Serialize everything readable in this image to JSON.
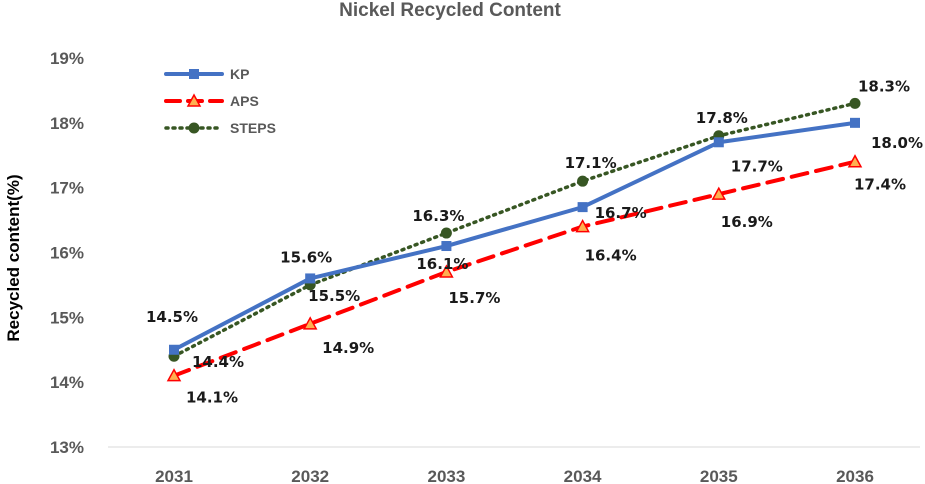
{
  "chart_data": {
    "type": "line",
    "title": "Nickel Recycled Content",
    "xlabel": "",
    "ylabel": "Recycled content(%)",
    "categories": [
      "2031",
      "2032",
      "2033",
      "2034",
      "2035",
      "2036"
    ],
    "ylim": [
      13,
      19
    ],
    "yticks": [
      "13%",
      "14%",
      "15%",
      "16%",
      "17%",
      "18%",
      "19%"
    ],
    "grid": false,
    "legend_position": "top-left",
    "series": [
      {
        "name": "KP",
        "values": [
          14.5,
          15.6,
          16.1,
          16.7,
          17.7,
          18.0
        ],
        "labels": [
          "14.5%",
          "15.6%",
          "16.1%",
          "16.7%",
          "17.7%",
          "18.0%"
        ],
        "color": "#4472C4",
        "line_style": "solid",
        "marker": "square"
      },
      {
        "name": "APS",
        "values": [
          14.1,
          14.9,
          15.7,
          16.4,
          16.9,
          17.4
        ],
        "labels": [
          "14.1%",
          "14.9%",
          "15.7%",
          "16.4%",
          "16.9%",
          "17.4%"
        ],
        "color": "#FF0000",
        "line_style": "dashed",
        "marker": "triangle"
      },
      {
        "name": "STEPS",
        "values": [
          14.4,
          15.5,
          16.3,
          17.1,
          17.8,
          18.3
        ],
        "labels": [
          "14.4%",
          "15.5%",
          "16.3%",
          "17.1%",
          "17.8%",
          "18.3%"
        ],
        "color": "#375623",
        "line_style": "dotted",
        "marker": "circle"
      }
    ]
  }
}
